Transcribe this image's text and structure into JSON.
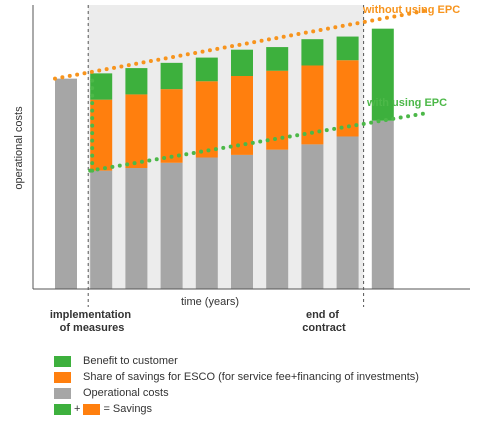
{
  "chart_data": {
    "type": "bar",
    "stacked": true,
    "ylabel": "operational costs",
    "xlabel": "time (years)",
    "x_annotations": [
      {
        "key": "implementation",
        "lines": [
          "implementation",
          "of measures"
        ]
      },
      {
        "key": "end",
        "lines": [
          "end of",
          "contract"
        ]
      }
    ],
    "series_names": [
      "Operational costs",
      "Share of savings for ESCO (for service fee+financing of investments)",
      "Benefit to customer"
    ],
    "bars": [
      {
        "operational": 0.8,
        "esco": 0.0,
        "benefit": 0.0
      },
      {
        "operational": 0.45,
        "esco": 0.27,
        "benefit": 0.1
      },
      {
        "operational": 0.46,
        "esco": 0.28,
        "benefit": 0.1
      },
      {
        "operational": 0.48,
        "esco": 0.28,
        "benefit": 0.1
      },
      {
        "operational": 0.5,
        "esco": 0.29,
        "benefit": 0.09
      },
      {
        "operational": 0.51,
        "esco": 0.3,
        "benefit": 0.1
      },
      {
        "operational": 0.53,
        "esco": 0.3,
        "benefit": 0.09
      },
      {
        "operational": 0.55,
        "esco": 0.3,
        "benefit": 0.1
      },
      {
        "operational": 0.58,
        "esco": 0.29,
        "benefit": 0.09
      },
      {
        "operational": 0.64,
        "esco": 0.0,
        "benefit": 0.35
      }
    ],
    "lines": [
      {
        "name": "without using EPC",
        "color": "#f7941d",
        "x": [
          0,
          10.6
        ],
        "y": [
          0.8,
          1.06
        ]
      },
      {
        "name": "with using EPC",
        "color": "#4cb848",
        "x": [
          1,
          10.6
        ],
        "y": [
          0.45,
          0.67
        ]
      },
      {
        "name": "",
        "color": "#4cb848",
        "x": [
          1,
          1
        ],
        "y": [
          0.45,
          0.82
        ]
      }
    ],
    "shaded_region": {
      "from_bar": 1,
      "to_bar": 8
    },
    "ylim": [
      0,
      1.08
    ],
    "grid": false,
    "legend_position": "bottom"
  },
  "legend": [
    {
      "label": "Benefit to customer",
      "color": "#3db03d"
    },
    {
      "label": "Share of savings for ESCO (for service fee+financing of investments)",
      "color": "#ff7f0e"
    },
    {
      "label": "Operational costs",
      "color": "#a6a6a6"
    }
  ],
  "legend_savings": {
    "plus": "+",
    "equals": "= Savings"
  },
  "colors": {
    "operational": "#a6a6a6",
    "esco": "#ff7f0e",
    "benefit": "#3db03d",
    "shade": "#ececec",
    "axis": "#555555",
    "dotted_orange": "#f7941d",
    "dotted_green": "#4cb848"
  }
}
